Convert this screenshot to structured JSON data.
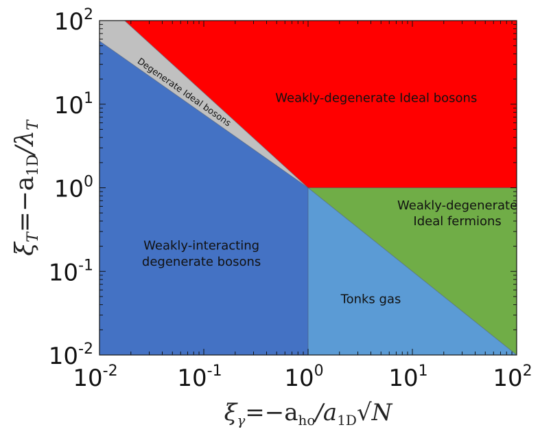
{
  "chart_data": {
    "type": "area",
    "title": "",
    "x_scale": "log",
    "y_scale": "log",
    "xlim": [
      0.01,
      100
    ],
    "ylim": [
      0.01,
      100
    ],
    "grid": false,
    "xlabel": {
      "symbol": "ξ",
      "subscript": "γ",
      "expression": "=−a",
      "sub1": "ho",
      "slash": "/a",
      "sub2": "1D",
      "root": "√N"
    },
    "ylabel": {
      "symbol": "ξ",
      "subscript": "T",
      "expression": "=−a",
      "sub1": "1D",
      "slash": "/λ",
      "sub2": "T"
    },
    "x_ticks": [
      {
        "value": 0.01,
        "base": "10",
        "exp": "-2"
      },
      {
        "value": 0.1,
        "base": "10",
        "exp": "-1"
      },
      {
        "value": 1,
        "base": "10",
        "exp": "0"
      },
      {
        "value": 10,
        "base": "10",
        "exp": "1"
      },
      {
        "value": 100,
        "base": "10",
        "exp": "2"
      }
    ],
    "y_ticks": [
      {
        "value": 0.01,
        "base": "10",
        "exp": "-2"
      },
      {
        "value": 0.1,
        "base": "10",
        "exp": "-1"
      },
      {
        "value": 1,
        "base": "10",
        "exp": "0"
      },
      {
        "value": 10,
        "base": "10",
        "exp": "1"
      },
      {
        "value": 100,
        "base": "10",
        "exp": "2"
      }
    ],
    "regions": [
      {
        "label": [
          "Weakly-degenerate Ideal bosons"
        ],
        "color": "#ff0000",
        "polygon": [
          [
            0.0174,
            100
          ],
          [
            100,
            100
          ],
          [
            100,
            1
          ],
          [
            1,
            1
          ]
        ],
        "label_at": [
          4.5,
          12
        ],
        "label_rotation": 0
      },
      {
        "label": [
          "Degenerate Ideal bosons"
        ],
        "color": "#c0c0c0",
        "polygon": [
          [
            0.01,
            100
          ],
          [
            0.0174,
            100
          ],
          [
            1,
            1
          ],
          [
            0.01,
            57
          ]
        ],
        "label_at": [
          0.065,
          14
        ],
        "label_rotation": 35
      },
      {
        "label": [
          "Weakly-interacting",
          "degenerate bosons"
        ],
        "color": "#4472c4",
        "polygon": [
          [
            0.01,
            57
          ],
          [
            1,
            1
          ],
          [
            1,
            0.01
          ],
          [
            0.01,
            0.01
          ]
        ],
        "label_at": [
          0.095,
          0.165
        ],
        "label_rotation": 0
      },
      {
        "label": [
          "Weakly-degenerate",
          "Ideal fermions"
        ],
        "color": "#70ad47",
        "polygon": [
          [
            1,
            1
          ],
          [
            100,
            1
          ],
          [
            100,
            0.01
          ]
        ],
        "label_at": [
          27,
          0.5
        ],
        "label_rotation": 0
      },
      {
        "label": [
          "Tonks gas"
        ],
        "color": "#5b9bd5",
        "polygon": [
          [
            1,
            1
          ],
          [
            100,
            0.01
          ],
          [
            1,
            0.01
          ]
        ],
        "label_at": [
          4,
          0.047
        ],
        "label_rotation": 0
      }
    ]
  }
}
